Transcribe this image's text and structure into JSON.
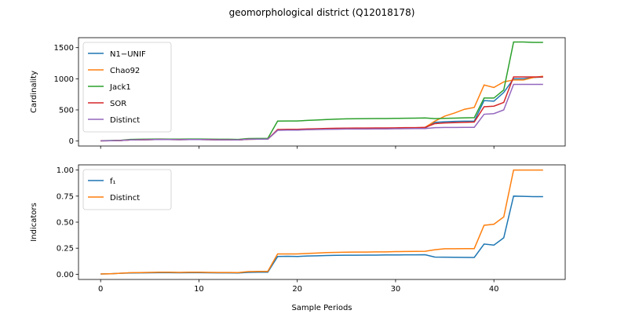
{
  "chart_data": {
    "type": "line",
    "title": "geomorphological district (Q12018178)",
    "xlabel": "Sample Periods",
    "shared_x": true,
    "x_range": [
      -2.25,
      47.25
    ],
    "x_ticks": [
      0,
      10,
      20,
      30,
      40
    ],
    "panels": [
      {
        "ylabel": "Cardinality",
        "ylim": [
          -80,
          1660
        ],
        "yticks": [
          0,
          500,
          1000,
          1500
        ],
        "legend_position": "upper-left",
        "series": [
          {
            "name": "N1−UNIF",
            "color": "#1f77b4",
            "values": [
              3,
              5,
              8,
              18,
              20,
              22,
              25,
              24,
              22,
              24,
              24,
              22,
              20,
              20,
              18,
              28,
              30,
              30,
              175,
              178,
              178,
              185,
              188,
              192,
              195,
              197,
              198,
              198,
              200,
              200,
              202,
              204,
              205,
              208,
              300,
              310,
              315,
              318,
              318,
              650,
              640,
              780,
              1000,
              1000,
              1020,
              1030
            ]
          },
          {
            "name": "Chao92",
            "color": "#ff7f0e",
            "values": [
              3,
              5,
              8,
              18,
              20,
              22,
              25,
              24,
              22,
              24,
              24,
              22,
              20,
              20,
              18,
              28,
              30,
              30,
              175,
              178,
              178,
              185,
              188,
              192,
              195,
              197,
              198,
              198,
              200,
              200,
              202,
              204,
              205,
              220,
              320,
              400,
              450,
              510,
              540,
              900,
              860,
              950,
              980,
              980,
              1020,
              1040
            ]
          },
          {
            "name": "Jack1",
            "color": "#2ca02c",
            "values": [
              5,
              8,
              12,
              25,
              28,
              30,
              32,
              31,
              30,
              32,
              32,
              30,
              28,
              28,
              26,
              40,
              42,
              42,
              320,
              322,
              322,
              332,
              338,
              345,
              352,
              356,
              358,
              360,
              362,
              362,
              364,
              366,
              368,
              370,
              360,
              365,
              368,
              372,
              375,
              690,
              690,
              820,
              1590,
              1590,
              1585,
              1585
            ]
          },
          {
            "name": "SOR",
            "color": "#d62728",
            "values": [
              3,
              5,
              8,
              18,
              20,
              22,
              25,
              24,
              22,
              24,
              24,
              22,
              20,
              20,
              18,
              28,
              30,
              30,
              185,
              188,
              188,
              195,
              198,
              202,
              205,
              207,
              208,
              208,
              210,
              210,
              212,
              214,
              215,
              220,
              280,
              290,
              295,
              300,
              305,
              550,
              560,
              620,
              1030,
              1030,
              1030,
              1030
            ]
          },
          {
            "name": "Distinct",
            "color": "#9467bd",
            "values": [
              3,
              5,
              8,
              18,
              20,
              22,
              25,
              24,
              22,
              24,
              24,
              22,
              20,
              20,
              18,
              28,
              30,
              30,
              172,
              175,
              175,
              182,
              185,
              188,
              190,
              192,
              193,
              193,
              195,
              195,
              197,
              199,
              200,
              200,
              215,
              218,
              218,
              220,
              220,
              430,
              440,
              500,
              910,
              910,
              910,
              910
            ]
          }
        ]
      },
      {
        "ylabel": "Indicators",
        "ylim": [
          -0.05,
          1.05
        ],
        "yticks": [
          0.0,
          0.25,
          0.5,
          0.75,
          1.0
        ],
        "yticklabels": [
          "0.00",
          "0.25",
          "0.50",
          "0.75",
          "1.00"
        ],
        "legend_position": "upper-left",
        "series": [
          {
            "name": "f₁",
            "color": "#1f77b4",
            "values": [
              0.003,
              0.005,
              0.009,
              0.012,
              0.013,
              0.014,
              0.015,
              0.015,
              0.014,
              0.015,
              0.015,
              0.014,
              0.013,
              0.013,
              0.012,
              0.018,
              0.02,
              0.02,
              0.17,
              0.172,
              0.17,
              0.175,
              0.177,
              0.18,
              0.182,
              0.183,
              0.183,
              0.184,
              0.184,
              0.185,
              0.185,
              0.186,
              0.186,
              0.187,
              0.165,
              0.164,
              0.163,
              0.162,
              0.161,
              0.29,
              0.28,
              0.35,
              0.75,
              0.748,
              0.745,
              0.745
            ]
          },
          {
            "name": "Distinct",
            "color": "#ff7f0e",
            "values": [
              0.003,
              0.005,
              0.009,
              0.015,
              0.016,
              0.018,
              0.02,
              0.02,
              0.018,
              0.02,
              0.02,
              0.018,
              0.017,
              0.017,
              0.016,
              0.025,
              0.027,
              0.027,
              0.195,
              0.195,
              0.195,
              0.2,
              0.203,
              0.208,
              0.21,
              0.212,
              0.213,
              0.213,
              0.215,
              0.215,
              0.217,
              0.218,
              0.219,
              0.22,
              0.235,
              0.245,
              0.245,
              0.246,
              0.246,
              0.47,
              0.48,
              0.55,
              1.0,
              1.0,
              1.0,
              1.0
            ]
          }
        ]
      }
    ]
  }
}
